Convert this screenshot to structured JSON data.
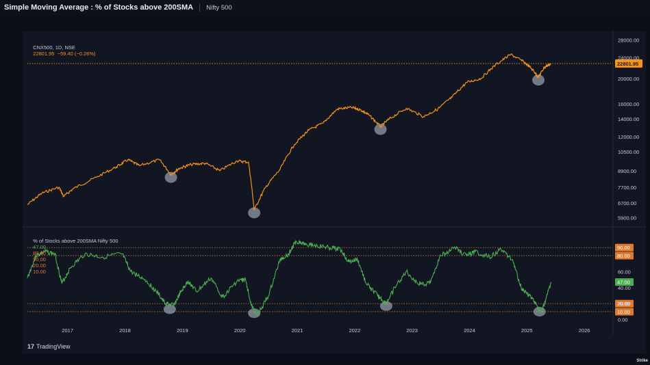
{
  "header": {
    "title": "Simple Moving Average : % of Stocks above 200SMA",
    "subtitle": "Nifty 500"
  },
  "price_legend": {
    "symbol": "CNX500, 1D, NSE",
    "values": "22801.95  −59.40 (−0.26%)"
  },
  "indicator_legend": {
    "name": "% of Stocks above 200SMA Nifty 500",
    "v1": "47.00",
    "v2": "80.00",
    "v3": "90.00",
    "v4": "20.00",
    "v5": "10.00"
  },
  "footer": {
    "brand": "TradingView",
    "corner": "Strike"
  },
  "colors": {
    "price": "#f7931a",
    "breadth": "#4caf50",
    "level": "#e07a2e",
    "highlight": "#9aa4b2"
  },
  "chart_data": [
    {
      "type": "line",
      "name": "CNX500 price",
      "scale": "log",
      "y_ticks": [
        5900,
        6700,
        7700,
        8900,
        10500,
        12000,
        14000,
        16000,
        20000,
        24000,
        28000
      ],
      "y_tick_labels": [
        "5900.00",
        "6700.00",
        "7700.00",
        "8900.00",
        "10500.00",
        "12000.00",
        "14000.00",
        "16000.00",
        "20000.00",
        "24000.00",
        "28000.00"
      ],
      "last_value": 22801.95,
      "last_label": "22801.95",
      "points": [
        [
          2016.3,
          6600
        ],
        [
          2016.55,
          7300
        ],
        [
          2016.85,
          7700
        ],
        [
          2016.93,
          7100
        ],
        [
          2017.1,
          7600
        ],
        [
          2017.5,
          8400
        ],
        [
          2017.85,
          9200
        ],
        [
          2018.05,
          9800
        ],
        [
          2018.25,
          9300
        ],
        [
          2018.6,
          9800
        ],
        [
          2018.8,
          8600
        ],
        [
          2018.95,
          9100
        ],
        [
          2019.15,
          9400
        ],
        [
          2019.4,
          9500
        ],
        [
          2019.65,
          8900
        ],
        [
          2019.95,
          9700
        ],
        [
          2020.15,
          9600
        ],
        [
          2020.25,
          6300
        ],
        [
          2020.45,
          7700
        ],
        [
          2020.7,
          9000
        ],
        [
          2020.95,
          11200
        ],
        [
          2021.2,
          12700
        ],
        [
          2021.45,
          13500
        ],
        [
          2021.7,
          15300
        ],
        [
          2021.95,
          15500
        ],
        [
          2022.1,
          15200
        ],
        [
          2022.25,
          14500
        ],
        [
          2022.45,
          13100
        ],
        [
          2022.6,
          14000
        ],
        [
          2022.9,
          15400
        ],
        [
          2023.2,
          14300
        ],
        [
          2023.45,
          15300
        ],
        [
          2023.7,
          17000
        ],
        [
          2023.95,
          19300
        ],
        [
          2024.2,
          20000
        ],
        [
          2024.45,
          22500
        ],
        [
          2024.72,
          24700
        ],
        [
          2024.95,
          23100
        ],
        [
          2025.1,
          21600
        ],
        [
          2025.2,
          20200
        ],
        [
          2025.3,
          22000
        ],
        [
          2025.42,
          22800
        ]
      ],
      "highlights": [
        [
          2018.8,
          8600
        ],
        [
          2020.25,
          6300
        ],
        [
          2022.45,
          13100
        ],
        [
          2025.2,
          20200
        ]
      ]
    },
    {
      "type": "line",
      "name": "% of Stocks above 200SMA Nifty 500",
      "ylim": [
        0,
        100
      ],
      "y_ticks": [
        0,
        20,
        40,
        60
      ],
      "y_tick_labels": [
        "0.00",
        "20.00",
        "40.00",
        "60.00"
      ],
      "levels": [
        90,
        80,
        20,
        10
      ],
      "level_labels": [
        "90.00",
        "80.00",
        "20.00",
        "10.00"
      ],
      "last_value": 47,
      "last_label": "47.00",
      "points": [
        [
          2016.3,
          52
        ],
        [
          2016.45,
          80
        ],
        [
          2016.6,
          85
        ],
        [
          2016.78,
          82
        ],
        [
          2016.9,
          45
        ],
        [
          2017.05,
          65
        ],
        [
          2017.3,
          82
        ],
        [
          2017.6,
          78
        ],
        [
          2017.95,
          82
        ],
        [
          2018.1,
          60
        ],
        [
          2018.35,
          50
        ],
        [
          2018.55,
          35
        ],
        [
          2018.7,
          20
        ],
        [
          2018.85,
          18
        ],
        [
          2018.98,
          35
        ],
        [
          2019.1,
          48
        ],
        [
          2019.25,
          35
        ],
        [
          2019.5,
          52
        ],
        [
          2019.7,
          28
        ],
        [
          2019.95,
          48
        ],
        [
          2020.1,
          50
        ],
        [
          2020.2,
          18
        ],
        [
          2020.3,
          5
        ],
        [
          2020.5,
          30
        ],
        [
          2020.7,
          75
        ],
        [
          2020.85,
          82
        ],
        [
          2020.98,
          98
        ],
        [
          2021.15,
          95
        ],
        [
          2021.35,
          92
        ],
        [
          2021.55,
          90
        ],
        [
          2021.75,
          88
        ],
        [
          2021.9,
          72
        ],
        [
          2022.05,
          75
        ],
        [
          2022.2,
          45
        ],
        [
          2022.4,
          30
        ],
        [
          2022.55,
          20
        ],
        [
          2022.7,
          40
        ],
        [
          2022.9,
          60
        ],
        [
          2023.1,
          45
        ],
        [
          2023.3,
          45
        ],
        [
          2023.5,
          80
        ],
        [
          2023.75,
          90
        ],
        [
          2023.95,
          80
        ],
        [
          2024.1,
          85
        ],
        [
          2024.35,
          78
        ],
        [
          2024.55,
          88
        ],
        [
          2024.75,
          75
        ],
        [
          2024.9,
          40
        ],
        [
          2025.05,
          30
        ],
        [
          2025.15,
          20
        ],
        [
          2025.25,
          8
        ],
        [
          2025.33,
          25
        ],
        [
          2025.42,
          47
        ]
      ],
      "highlights": [
        [
          2018.78,
          13
        ],
        [
          2020.25,
          8
        ],
        [
          2022.55,
          17
        ],
        [
          2025.22,
          10
        ]
      ]
    }
  ],
  "x_axis": {
    "ticks": [
      2017,
      2018,
      2019,
      2020,
      2021,
      2022,
      2023,
      2024,
      2025,
      2026
    ],
    "labels": [
      "2017",
      "2018",
      "2019",
      "2020",
      "2021",
      "2022",
      "2023",
      "2024",
      "2025",
      "2026"
    ]
  }
}
